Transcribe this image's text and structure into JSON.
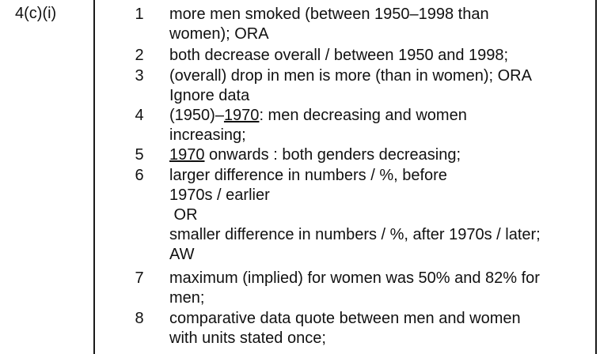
{
  "question": "4(c)(i)",
  "points": [
    {
      "num": "1",
      "lines": [
        "more men smoked (between 1950–1998 than",
        "women); ORA"
      ]
    },
    {
      "num": "2",
      "lines": [
        "both decrease overall / between 1950 and 1998;"
      ]
    },
    {
      "num": "3",
      "lines": [
        "(overall) drop in men is more (than in women); ORA",
        "Ignore data"
      ]
    },
    {
      "num": "4",
      "line1_pre": "(1950)–",
      "line1_u": "1970",
      "line1_post": ": men decreasing and women",
      "line2": "increasing;"
    },
    {
      "num": "5",
      "line1_u": "1970",
      "line1_post": " onwards : both genders decreasing;"
    },
    {
      "num": "6",
      "lines": [
        "larger difference in numbers / %, before",
        "1970s / earlier",
        " OR",
        "smaller difference in numbers / %, after 1970s / later;",
        "AW"
      ]
    },
    {
      "num": "7",
      "lines": [
        "maximum (implied) for women was 50% and 82% for",
        "men;"
      ]
    },
    {
      "num": "8",
      "lines": [
        "comparative data quote between men and women",
        "with units stated once;"
      ]
    }
  ]
}
